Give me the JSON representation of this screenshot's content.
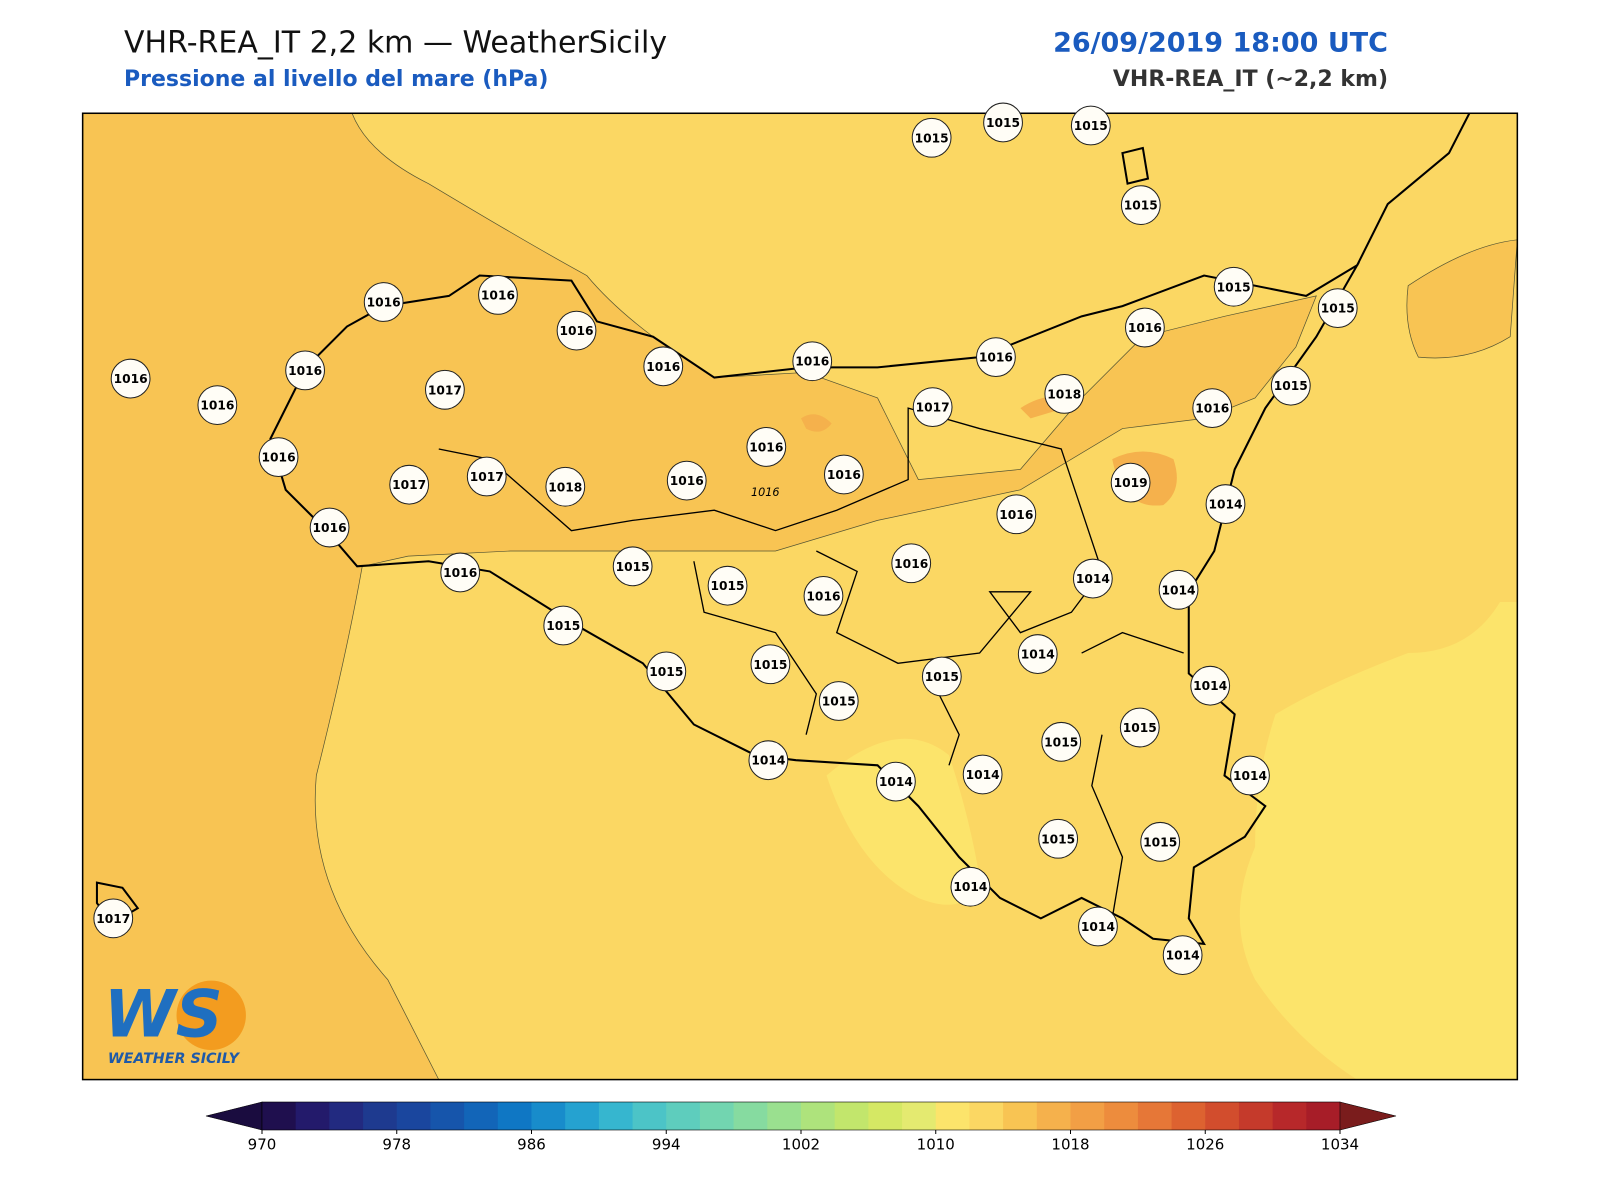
{
  "header": {
    "title": "VHR-REA_IT 2,2 km — WeatherSicily",
    "subtitle": "Pressione al livello del mare (hPa)",
    "datetime": "26/09/2019 18:00 UTC",
    "model": "VHR-REA_IT (~2,2 km)"
  },
  "stations": [
    1015,
    1015,
    1015,
    1015,
    1016,
    1016,
    1016,
    1015,
    1015,
    1016,
    1016,
    1016,
    1016,
    1016,
    1016,
    1016,
    1017,
    1017,
    1018,
    1015,
    1016,
    1016,
    1016,
    1017,
    1017,
    1018,
    1016,
    1016,
    1019,
    1014,
    1016,
    1016,
    1015,
    1016,
    1016,
    1015,
    1016,
    1014,
    1014,
    1015,
    1014,
    1015,
    1015,
    1015,
    1015,
    1014,
    1015,
    1015,
    1014,
    1014,
    1014,
    1014,
    1015,
    1015,
    1014,
    1014,
    1014,
    1017
  ],
  "contour_label": "1016",
  "logo": {
    "mark": "WS",
    "text": "WEATHER SICILY"
  },
  "colorbar": {
    "ticks": [
      970,
      978,
      986,
      994,
      1002,
      1010,
      1018,
      1026,
      1034
    ],
    "colors": [
      "#1f0f4e",
      "#231a6b",
      "#222a80",
      "#1e3a8f",
      "#1a469e",
      "#1655ab",
      "#1265b8",
      "#0f77c4",
      "#188ccb",
      "#25a2d0",
      "#36b6cf",
      "#4cc4c7",
      "#5ecdbd",
      "#72d5b0",
      "#86dba0",
      "#9ae08f",
      "#aee37c",
      "#c2e66c",
      "#d5e864",
      "#e4ea70",
      "#fce46b",
      "#fbd763",
      "#f8c453",
      "#f5b14c",
      "#f29f45",
      "#ed8c3d",
      "#e67737",
      "#dd6230",
      "#d24d2d",
      "#c53a2b",
      "#b7282a",
      "#a71d28"
    ],
    "under": "#1a0c3f",
    "over": "#7a1c1c"
  }
}
